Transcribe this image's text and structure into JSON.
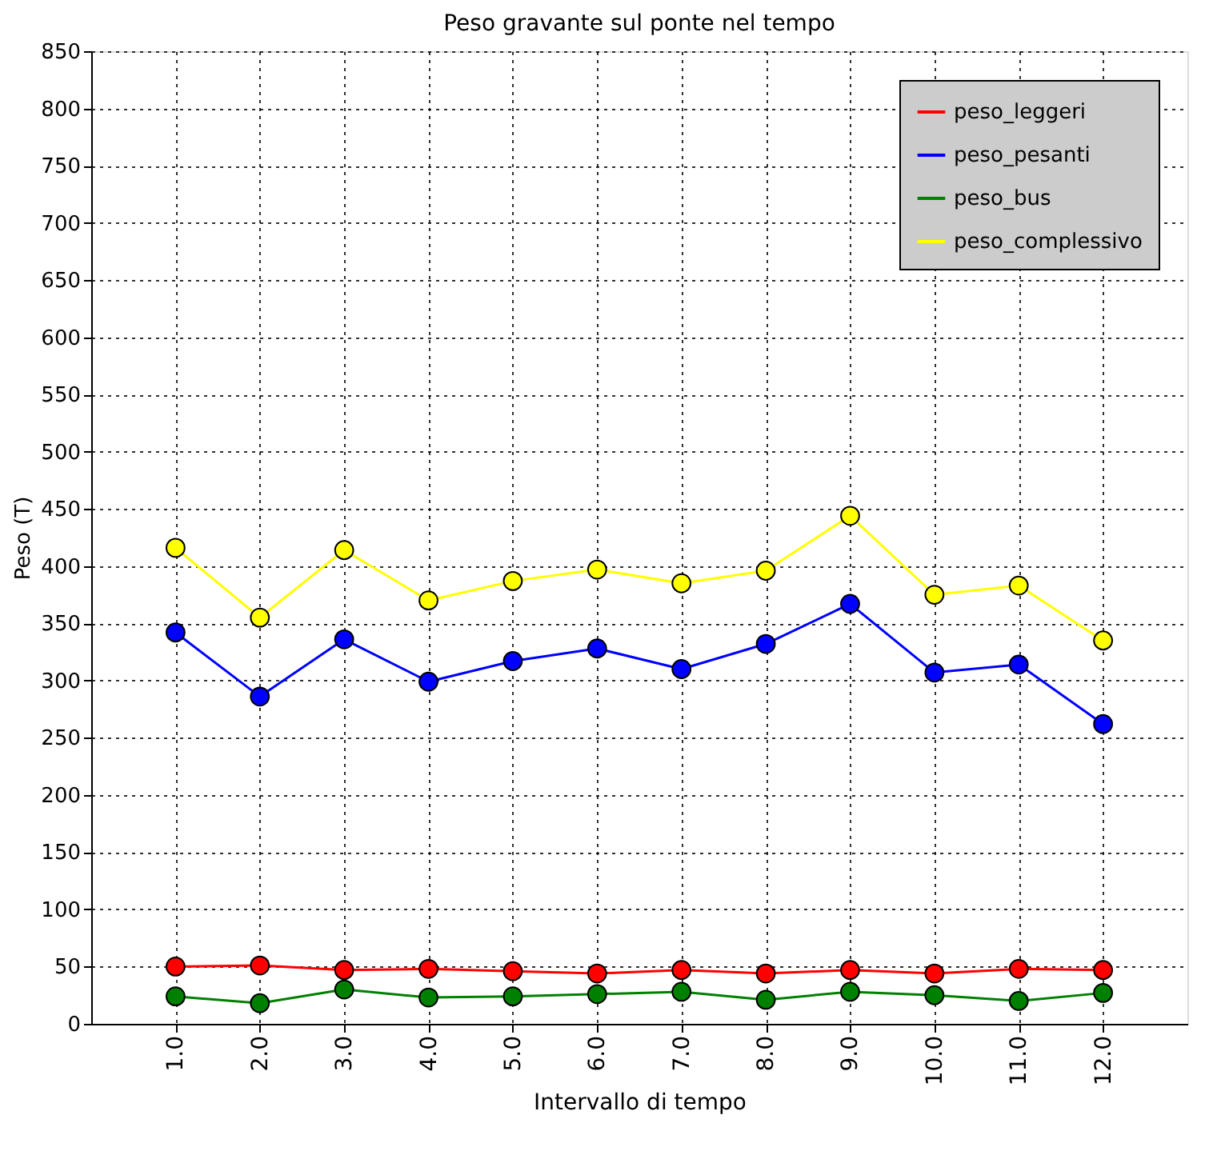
{
  "chart_data": {
    "type": "line",
    "title": "Peso gravante sul ponte nel tempo",
    "xlabel": "Intervallo di tempo",
    "ylabel": "Peso (T)",
    "x": [
      1,
      2,
      3,
      4,
      5,
      6,
      7,
      8,
      9,
      10,
      11,
      12
    ],
    "xlim": [
      0,
      13
    ],
    "xticks": [
      {
        "value": 1,
        "label": "1.0"
      },
      {
        "value": 2,
        "label": "2.0"
      },
      {
        "value": 3,
        "label": "3.0"
      },
      {
        "value": 4,
        "label": "4.0"
      },
      {
        "value": 5,
        "label": "5.0"
      },
      {
        "value": 6,
        "label": "6.0"
      },
      {
        "value": 7,
        "label": "7.0"
      },
      {
        "value": 8,
        "label": "8.0"
      },
      {
        "value": 9,
        "label": "9.0"
      },
      {
        "value": 10,
        "label": "10.0"
      },
      {
        "value": 11,
        "label": "11.0"
      },
      {
        "value": 12,
        "label": "12.0"
      }
    ],
    "ylim": [
      0,
      850
    ],
    "yticks": [
      0,
      50,
      100,
      150,
      200,
      250,
      300,
      350,
      400,
      450,
      500,
      550,
      600,
      650,
      700,
      750,
      800,
      850
    ],
    "series": [
      {
        "name": "peso_leggeri",
        "color": "#ff0000",
        "values": [
          50,
          51,
          47,
          48,
          46,
          44,
          47,
          44,
          47,
          44,
          48,
          47
        ]
      },
      {
        "name": "peso_pesanti",
        "color": "#0000ff",
        "values": [
          342,
          286,
          336,
          299,
          317,
          328,
          310,
          332,
          367,
          307,
          314,
          262
        ]
      },
      {
        "name": "peso_bus",
        "color": "#008000",
        "values": [
          24,
          18,
          30,
          23,
          24,
          26,
          28,
          21,
          28,
          25,
          20,
          27
        ]
      },
      {
        "name": "peso_complessivo",
        "color": "#ffff00",
        "values": [
          416,
          355,
          414,
          370,
          387,
          397,
          385,
          396,
          444,
          375,
          383,
          335
        ]
      }
    ],
    "grid": true,
    "legend": "top right",
    "marker": "circle",
    "line_style": "solid"
  }
}
